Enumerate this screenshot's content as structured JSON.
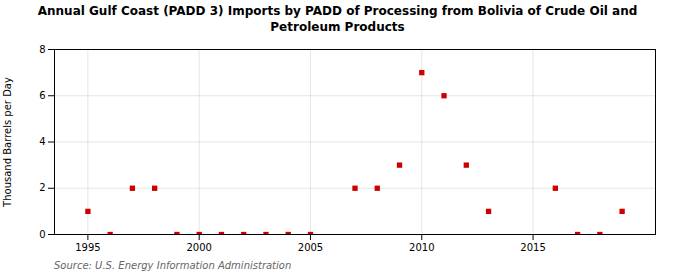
{
  "chart_data": {
    "type": "scatter",
    "title": "Annual Gulf Coast (PADD 3) Imports by PADD of Processing from Bolivia of Crude Oil and\nPetroleum Products",
    "ylabel": "Thousand Barrels per Day",
    "annotations": [
      "Source: U.S. Energy Information Administration"
    ],
    "x": [
      1995,
      1996,
      1997,
      1998,
      1999,
      2000,
      2001,
      2002,
      2003,
      2004,
      2005,
      2007,
      2008,
      2009,
      2010,
      2011,
      2012,
      2013,
      2016,
      2017,
      2018,
      2019
    ],
    "values": [
      1,
      0,
      2,
      2,
      0,
      0,
      0,
      0,
      0,
      0,
      0,
      2,
      2,
      3,
      7,
      6,
      3,
      1,
      2,
      0,
      0,
      1
    ],
    "color": "#cc0000",
    "marker": "square",
    "xlim": [
      1993.5,
      2020.5
    ],
    "xticks": [
      1995,
      2000,
      2005,
      2010,
      2015
    ],
    "ylim": [
      0,
      8
    ],
    "yticks": [
      0,
      2,
      4,
      6,
      8
    ],
    "grid": true
  }
}
